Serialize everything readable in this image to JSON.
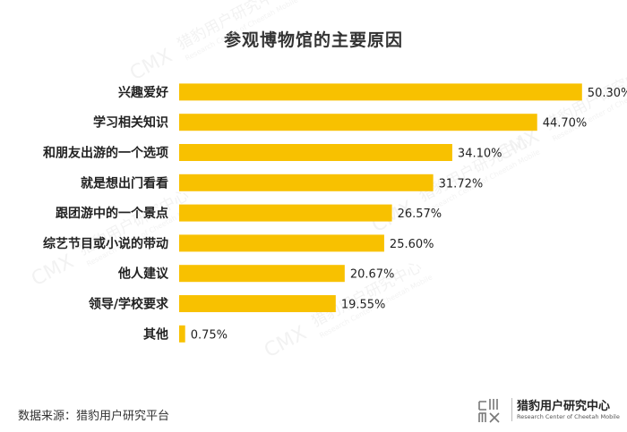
{
  "source_note": "数据来源：猎豹用户研究平台",
  "watermark": {
    "mark_text": "CMX",
    "text": "猎豹用户研究中心",
    "subtext": "Research Center of Cheetah Mobile"
  },
  "footer_logo": {
    "mark_text": "CMX",
    "name": "猎豹用户研究中心",
    "subtitle": "Research Center of Cheetah Mobile"
  },
  "colors": {
    "bar": "#F8C100",
    "text": "#222222",
    "watermark": "#e9e9e9"
  },
  "chart_data": {
    "type": "bar",
    "orientation": "horizontal",
    "title": "参观博物馆的主要原因",
    "categories": [
      "兴趣爱好",
      "学习相关知识",
      "和朋友出游的一个选项",
      "就是想出门看看",
      "跟团游中的一个景点",
      "综艺节目或小说的带动",
      "他人建议",
      "领导/学校要求",
      "其他"
    ],
    "values": [
      50.3,
      44.7,
      34.1,
      31.72,
      26.57,
      25.6,
      20.67,
      19.55,
      0.75
    ],
    "value_labels": [
      "50.30%",
      "44.70%",
      "34.10%",
      "31.72%",
      "26.57%",
      "25.60%",
      "20.67%",
      "19.55%",
      "0.75%"
    ],
    "xlim": [
      0,
      52
    ],
    "grid": false,
    "legend": "none",
    "xlabel": "",
    "ylabel": ""
  }
}
